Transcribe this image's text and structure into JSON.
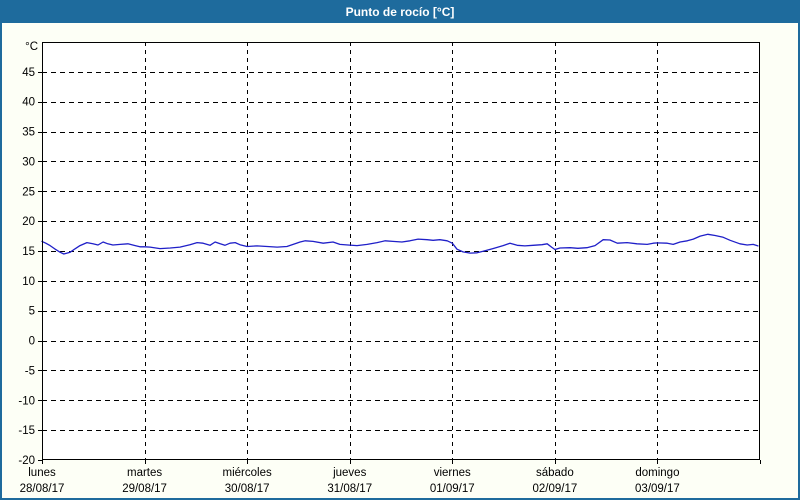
{
  "window": {
    "title": "Punto de rocío [°C]"
  },
  "colors": {
    "titlebar": "#1e6b9d",
    "border": "#1e6b9d",
    "background": "#fdfff6",
    "plot_background": "#ffffff",
    "grid": "#000000",
    "text": "#000000",
    "line": "#1f1fc8"
  },
  "chart_data": {
    "type": "line",
    "title": "Punto de rocío [°C]",
    "unit_label": "°C",
    "ylim": [
      -20,
      50
    ],
    "y_ticks": [
      -20,
      -15,
      -10,
      -5,
      0,
      5,
      10,
      15,
      20,
      25,
      30,
      35,
      40,
      45
    ],
    "grid": "dashed",
    "legend": "none",
    "x_hours_total": 168,
    "x_days": [
      {
        "name": "lunes",
        "date": "28/08/17"
      },
      {
        "name": "martes",
        "date": "29/08/17"
      },
      {
        "name": "miércoles",
        "date": "30/08/17"
      },
      {
        "name": "jueves",
        "date": "31/08/17"
      },
      {
        "name": "viernes",
        "date": "01/09/17"
      },
      {
        "name": "sábado",
        "date": "02/09/17"
      },
      {
        "name": "domingo",
        "date": "03/09/17"
      }
    ],
    "series": [
      {
        "name": "Punto de rocío",
        "color": "#1f1fc8",
        "points": [
          [
            0,
            16.6
          ],
          [
            0.9,
            16.3
          ],
          [
            1.9,
            15.9
          ],
          [
            3,
            15.35
          ],
          [
            4.2,
            14.8
          ],
          [
            5.1,
            14.5
          ],
          [
            6.6,
            14.8
          ],
          [
            7.7,
            15.35
          ],
          [
            8.9,
            15.9
          ],
          [
            10.5,
            16.4
          ],
          [
            11.9,
            16.2
          ],
          [
            13.1,
            16.0
          ],
          [
            14.3,
            16.5
          ],
          [
            15.4,
            16.2
          ],
          [
            16.6,
            16.0
          ],
          [
            18.3,
            16.1
          ],
          [
            20.1,
            16.2
          ],
          [
            21.8,
            15.9
          ],
          [
            22.9,
            15.7
          ],
          [
            24.1,
            15.7
          ],
          [
            25.3,
            15.65
          ],
          [
            27.6,
            15.4
          ],
          [
            30,
            15.5
          ],
          [
            32.3,
            15.65
          ],
          [
            34.6,
            16.05
          ],
          [
            36.3,
            16.4
          ],
          [
            37.7,
            16.3
          ],
          [
            39.3,
            15.95
          ],
          [
            40.5,
            16.5
          ],
          [
            41.7,
            16.2
          ],
          [
            42.8,
            15.95
          ],
          [
            44,
            16.3
          ],
          [
            45.2,
            16.4
          ],
          [
            46.3,
            16.05
          ],
          [
            48,
            15.75
          ],
          [
            50.3,
            15.85
          ],
          [
            52.7,
            15.75
          ],
          [
            55,
            15.65
          ],
          [
            57.3,
            15.75
          ],
          [
            59.2,
            16.2
          ],
          [
            60.4,
            16.5
          ],
          [
            61.6,
            16.7
          ],
          [
            63.4,
            16.6
          ],
          [
            65.8,
            16.3
          ],
          [
            68.1,
            16.5
          ],
          [
            69.7,
            16.1
          ],
          [
            71.6,
            16.0
          ],
          [
            73.7,
            15.9
          ],
          [
            76.1,
            16.1
          ],
          [
            78.4,
            16.4
          ],
          [
            80.3,
            16.7
          ],
          [
            82.1,
            16.6
          ],
          [
            84.2,
            16.5
          ],
          [
            86.1,
            16.7
          ],
          [
            88,
            17.0
          ],
          [
            90.1,
            16.9
          ],
          [
            91.5,
            16.8
          ],
          [
            93.1,
            16.9
          ],
          [
            94.8,
            16.7
          ],
          [
            96,
            16.3
          ],
          [
            97.1,
            15.3
          ],
          [
            98.5,
            14.85
          ],
          [
            100.2,
            14.65
          ],
          [
            101.8,
            14.7
          ],
          [
            103.2,
            14.95
          ],
          [
            105.5,
            15.4
          ],
          [
            107.9,
            15.9
          ],
          [
            109.5,
            16.3
          ],
          [
            111.2,
            15.95
          ],
          [
            113,
            15.85
          ],
          [
            114.9,
            15.95
          ],
          [
            117,
            16.05
          ],
          [
            118.2,
            16.2
          ],
          [
            119.3,
            15.6
          ],
          [
            120,
            15.25
          ],
          [
            121.2,
            15.5
          ],
          [
            123.6,
            15.55
          ],
          [
            125.4,
            15.45
          ],
          [
            127.5,
            15.55
          ],
          [
            129.4,
            15.9
          ],
          [
            131.3,
            16.9
          ],
          [
            132.9,
            16.85
          ],
          [
            134.6,
            16.3
          ],
          [
            136.9,
            16.4
          ],
          [
            139.2,
            16.2
          ],
          [
            141.6,
            16.1
          ],
          [
            143,
            16.3
          ],
          [
            144,
            16.35
          ],
          [
            146.3,
            16.3
          ],
          [
            147.7,
            16.1
          ],
          [
            149.3,
            16.5
          ],
          [
            151,
            16.7
          ],
          [
            152.4,
            17.0
          ],
          [
            154,
            17.5
          ],
          [
            155.8,
            17.8
          ],
          [
            157.5,
            17.6
          ],
          [
            159.4,
            17.3
          ],
          [
            161,
            16.8
          ],
          [
            163.3,
            16.2
          ],
          [
            165,
            16.0
          ],
          [
            166.4,
            16.1
          ],
          [
            167.5,
            15.85
          ]
        ]
      }
    ]
  }
}
